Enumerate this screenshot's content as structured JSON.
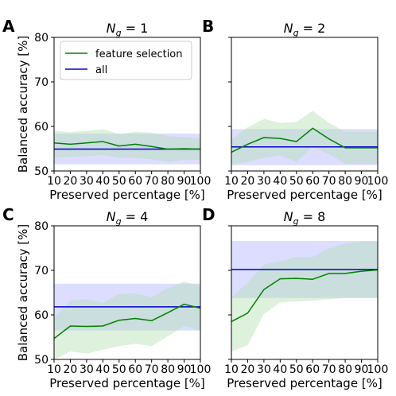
{
  "chart_data": [
    {
      "panel_letter": "A",
      "type": "line",
      "title": "N_g = 1",
      "title_main": "N",
      "title_sub": "g",
      "title_rest": " = 1",
      "xlabel": "Preserved percentage [%]",
      "ylabel": "Balanced accuracy [%]",
      "x": [
        10,
        20,
        30,
        40,
        50,
        60,
        70,
        80,
        90,
        100
      ],
      "xticks": [
        "10",
        "20",
        "30",
        "40",
        "50",
        "60",
        "70",
        "80",
        "90",
        "100"
      ],
      "ylim": [
        50,
        80
      ],
      "yticks": [
        "50",
        "60",
        "70",
        "80"
      ],
      "legend": {
        "position": "upper left",
        "entries": [
          "feature selection",
          "all"
        ]
      },
      "series": [
        {
          "name": "feature selection",
          "color": "#008000",
          "values": [
            56.3,
            56.0,
            56.3,
            56.6,
            55.6,
            56.0,
            55.5,
            54.9,
            55.0,
            54.9
          ],
          "band_low": [
            53.0,
            53.2,
            53.3,
            53.6,
            53.0,
            53.0,
            52.6,
            52.0,
            52.5,
            52.5
          ],
          "band_high": [
            59.0,
            58.7,
            59.0,
            59.4,
            58.3,
            58.8,
            58.6,
            57.8,
            57.6,
            57.2
          ]
        },
        {
          "name": "all",
          "color": "#0000cc",
          "values": [
            54.9,
            54.9,
            54.9,
            54.9,
            54.9,
            54.9,
            54.9,
            54.9,
            54.9,
            54.9
          ],
          "band_low": [
            51.5,
            51.5,
            51.5,
            51.5,
            51.5,
            51.5,
            51.5,
            51.5,
            51.5,
            51.5
          ],
          "band_high": [
            58.4,
            58.4,
            58.4,
            58.4,
            58.4,
            58.4,
            58.4,
            58.4,
            58.4,
            58.4
          ]
        }
      ]
    },
    {
      "panel_letter": "B",
      "type": "line",
      "title": "N_g = 2",
      "title_main": "N",
      "title_sub": "g",
      "title_rest": " = 2",
      "xlabel": "Preserved percentage [%]",
      "ylabel": "",
      "x": [
        10,
        20,
        30,
        40,
        50,
        60,
        70,
        80,
        90,
        100
      ],
      "xticks": [
        "10",
        "20",
        "30",
        "40",
        "50",
        "60",
        "70",
        "80",
        "90",
        "100"
      ],
      "ylim": [
        50,
        80
      ],
      "yticks": [],
      "series": [
        {
          "name": "feature selection",
          "color": "#008000",
          "values": [
            54.2,
            56.0,
            57.5,
            57.3,
            56.6,
            59.6,
            57.2,
            55.2,
            55.2,
            55.2
          ],
          "band_low": [
            51.5,
            52.0,
            53.0,
            53.5,
            52.0,
            55.5,
            53.8,
            51.6,
            51.6,
            51.6
          ],
          "band_high": [
            57.0,
            59.8,
            61.7,
            60.8,
            61.0,
            63.5,
            60.8,
            58.8,
            58.8,
            58.8
          ]
        },
        {
          "name": "all",
          "color": "#0000cc",
          "values": [
            55.4,
            55.4,
            55.4,
            55.4,
            55.4,
            55.4,
            55.4,
            55.4,
            55.4,
            55.4
          ],
          "band_low": [
            51.3,
            51.3,
            51.3,
            51.3,
            51.3,
            51.3,
            51.3,
            51.3,
            51.3,
            51.3
          ],
          "band_high": [
            59.4,
            59.4,
            59.4,
            59.4,
            59.4,
            59.4,
            59.4,
            59.4,
            59.4,
            59.4
          ]
        }
      ]
    },
    {
      "panel_letter": "C",
      "type": "line",
      "title": "N_g = 4",
      "title_main": "N",
      "title_sub": "g",
      "title_rest": " = 4",
      "xlabel": "Preserved percentage [%]",
      "ylabel": "Balanced accuracy [%]",
      "x": [
        10,
        20,
        30,
        40,
        50,
        60,
        70,
        80,
        90,
        100
      ],
      "xticks": [
        "10",
        "20",
        "30",
        "40",
        "50",
        "60",
        "70",
        "80",
        "90",
        "100"
      ],
      "ylim": [
        50,
        80
      ],
      "yticks": [
        "50",
        "60",
        "70",
        "80"
      ],
      "series": [
        {
          "name": "feature selection",
          "color": "#008000",
          "values": [
            54.7,
            57.5,
            57.4,
            57.5,
            58.8,
            59.2,
            58.7,
            60.5,
            62.4,
            61.5
          ],
          "band_low": [
            50.0,
            51.8,
            51.3,
            52.2,
            53.0,
            53.5,
            53.0,
            55.2,
            57.5,
            56.5
          ],
          "band_high": [
            59.4,
            63.2,
            63.5,
            62.8,
            64.7,
            64.8,
            64.0,
            66.0,
            67.5,
            66.5
          ]
        },
        {
          "name": "all",
          "color": "#0000cc",
          "values": [
            61.8,
            61.8,
            61.8,
            61.8,
            61.8,
            61.8,
            61.8,
            61.8,
            61.8,
            61.8
          ],
          "band_low": [
            56.5,
            56.5,
            56.5,
            56.5,
            56.5,
            56.5,
            56.5,
            56.5,
            56.5,
            56.5
          ],
          "band_high": [
            67.0,
            67.0,
            67.0,
            67.0,
            67.0,
            67.0,
            67.0,
            67.0,
            67.0,
            67.0
          ]
        }
      ]
    },
    {
      "panel_letter": "D",
      "type": "line",
      "title": "N_g = 8",
      "title_main": "N",
      "title_sub": "g",
      "title_rest": " = 8",
      "xlabel": "Preserved percentage [%]",
      "ylabel": "",
      "x": [
        10,
        20,
        30,
        40,
        50,
        60,
        70,
        80,
        90,
        100
      ],
      "xticks": [
        "10",
        "20",
        "30",
        "40",
        "50",
        "60",
        "70",
        "80",
        "90",
        "100"
      ],
      "ylim": [
        50,
        80
      ],
      "yticks": [],
      "series": [
        {
          "name": "feature selection",
          "color": "#008000",
          "values": [
            58.5,
            60.4,
            65.7,
            68.1,
            68.2,
            68.0,
            69.3,
            69.3,
            69.8,
            70.1
          ],
          "band_low": [
            51.8,
            53.2,
            60.2,
            62.8,
            63.0,
            63.2,
            63.5,
            63.8,
            63.8,
            63.8
          ],
          "band_high": [
            64.0,
            67.2,
            71.3,
            72.0,
            73.0,
            73.0,
            75.0,
            76.0,
            76.5,
            76.5
          ]
        },
        {
          "name": "all",
          "color": "#0000cc",
          "values": [
            70.2,
            70.2,
            70.2,
            70.2,
            70.2,
            70.2,
            70.2,
            70.2,
            70.2,
            70.2
          ],
          "band_low": [
            63.8,
            63.8,
            63.8,
            63.8,
            63.8,
            63.8,
            63.8,
            63.8,
            63.8,
            63.8
          ],
          "band_high": [
            76.6,
            76.6,
            76.6,
            76.6,
            76.6,
            76.6,
            76.6,
            76.6,
            76.6,
            76.6
          ]
        }
      ]
    }
  ],
  "colors": {
    "feature_selection_line": "#008000",
    "feature_selection_band": "#b3e0b3",
    "all_line": "#0000cc",
    "all_band": "#b3b3ff"
  }
}
